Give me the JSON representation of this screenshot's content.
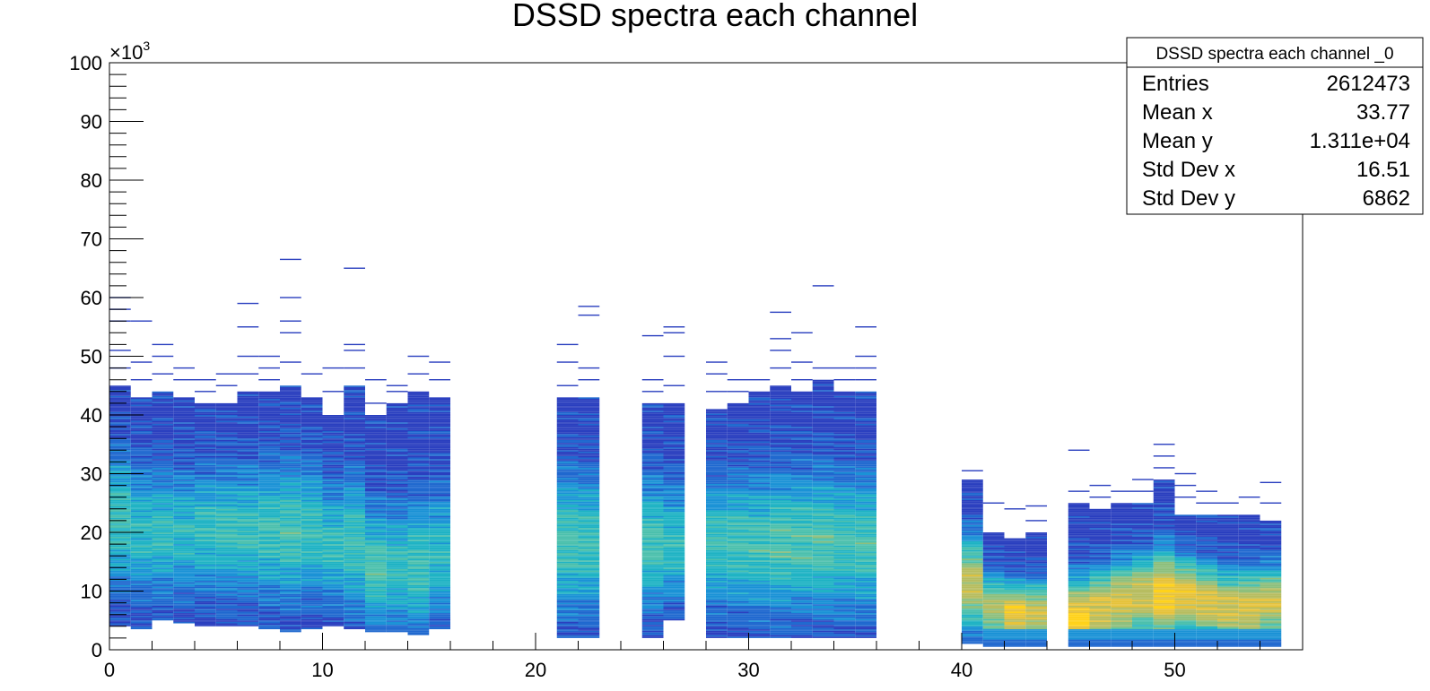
{
  "chart_data": {
    "type": "heatmap",
    "title": "DSSD spectra each channel",
    "xlabel": "",
    "ylabel": "",
    "xlim": [
      0,
      56
    ],
    "ylim": [
      0,
      100
    ],
    "y_multiplier_label": "×10",
    "y_multiplier_exponent": "3",
    "x_ticks": [
      {
        "value": 0,
        "label": "0"
      },
      {
        "value": 10,
        "label": "10"
      },
      {
        "value": 20,
        "label": "20"
      },
      {
        "value": 30,
        "label": "30"
      },
      {
        "value": 40,
        "label": "40"
      },
      {
        "value": 50,
        "label": "50"
      }
    ],
    "y_ticks": [
      {
        "value": 0,
        "label": "0"
      },
      {
        "value": 10,
        "label": "10"
      },
      {
        "value": 20,
        "label": "20"
      },
      {
        "value": 30,
        "label": "30"
      },
      {
        "value": 40,
        "label": "40"
      },
      {
        "value": 50,
        "label": "50"
      },
      {
        "value": 60,
        "label": "60"
      },
      {
        "value": 70,
        "label": "70"
      },
      {
        "value": 80,
        "label": "80"
      },
      {
        "value": 90,
        "label": "90"
      },
      {
        "value": 100,
        "label": "100"
      }
    ],
    "palette": [
      "#2a3fbf",
      "#1f68cf",
      "#1a92d6",
      "#1fb3c4",
      "#4cc0ad",
      "#8dbf7d",
      "#b7bd60",
      "#e6c23a",
      "#ffd21a"
    ],
    "channels": [
      {
        "x": 0,
        "lo": 4,
        "hi": 45,
        "peak": 22,
        "intensity": 0.45,
        "outliers": [
          48,
          51,
          56,
          58,
          60
        ]
      },
      {
        "x": 1,
        "lo": 3.5,
        "hi": 43,
        "peak": 20,
        "intensity": 0.4,
        "outliers": [
          46,
          49,
          56
        ]
      },
      {
        "x": 2,
        "lo": 5,
        "hi": 44,
        "peak": 20,
        "intensity": 0.42,
        "outliers": [
          47,
          50,
          52
        ]
      },
      {
        "x": 3,
        "lo": 4.5,
        "hi": 43,
        "peak": 20,
        "intensity": 0.4,
        "outliers": [
          46,
          48
        ]
      },
      {
        "x": 4,
        "lo": 4,
        "hi": 42,
        "peak": 20,
        "intensity": 0.42,
        "outliers": [
          44,
          46
        ]
      },
      {
        "x": 5,
        "lo": 4,
        "hi": 42,
        "peak": 20,
        "intensity": 0.45,
        "outliers": [
          45,
          47
        ]
      },
      {
        "x": 6,
        "lo": 4,
        "hi": 44,
        "peak": 20,
        "intensity": 0.45,
        "outliers": [
          47,
          50,
          55,
          59
        ]
      },
      {
        "x": 7,
        "lo": 3.5,
        "hi": 44,
        "peak": 20,
        "intensity": 0.47,
        "outliers": [
          46,
          48,
          50
        ]
      },
      {
        "x": 8,
        "lo": 3,
        "hi": 45,
        "peak": 20,
        "intensity": 0.48,
        "outliers": [
          49,
          54,
          56,
          60,
          66.5
        ]
      },
      {
        "x": 9,
        "lo": 3.5,
        "hi": 43,
        "peak": 20,
        "intensity": 0.44,
        "outliers": [
          47
        ]
      },
      {
        "x": 10,
        "lo": 4,
        "hi": 40,
        "peak": 18,
        "intensity": 0.42,
        "outliers": [
          44,
          48
        ]
      },
      {
        "x": 11,
        "lo": 3.5,
        "hi": 45,
        "peak": 18,
        "intensity": 0.45,
        "outliers": [
          48,
          51,
          52,
          65
        ]
      },
      {
        "x": 12,
        "lo": 3,
        "hi": 40,
        "peak": 14,
        "intensity": 0.5,
        "outliers": [
          42,
          46
        ]
      },
      {
        "x": 13,
        "lo": 3,
        "hi": 42,
        "peak": 14,
        "intensity": 0.42,
        "outliers": [
          44,
          45
        ]
      },
      {
        "x": 14,
        "lo": 2.5,
        "hi": 44,
        "peak": 14,
        "intensity": 0.46,
        "outliers": [
          47,
          50
        ]
      },
      {
        "x": 15,
        "lo": 3.5,
        "hi": 43,
        "peak": 16,
        "intensity": 0.4,
        "outliers": [
          46,
          49
        ]
      },
      {
        "x": 21,
        "lo": 2,
        "hi": 43,
        "peak": 18,
        "intensity": 0.48,
        "outliers": [
          45,
          49,
          52
        ]
      },
      {
        "x": 22,
        "lo": 2,
        "hi": 43,
        "peak": 18,
        "intensity": 0.46,
        "outliers": [
          46,
          48,
          57,
          58.5
        ]
      },
      {
        "x": 25,
        "lo": 2,
        "hi": 42,
        "peak": 18,
        "intensity": 0.48,
        "outliers": [
          44,
          46,
          53.5
        ]
      },
      {
        "x": 26,
        "lo": 5,
        "hi": 42,
        "peak": 18,
        "intensity": 0.42,
        "outliers": [
          45,
          50,
          54,
          55
        ]
      },
      {
        "x": 28,
        "lo": 2,
        "hi": 41,
        "peak": 18,
        "intensity": 0.44,
        "outliers": [
          44,
          47,
          49
        ]
      },
      {
        "x": 29,
        "lo": 2,
        "hi": 42,
        "peak": 18,
        "intensity": 0.46,
        "outliers": [
          44,
          46
        ]
      },
      {
        "x": 30,
        "lo": 2,
        "hi": 44,
        "peak": 18,
        "intensity": 0.47,
        "outliers": [
          46
        ]
      },
      {
        "x": 31,
        "lo": 2,
        "hi": 45,
        "peak": 18,
        "intensity": 0.5,
        "outliers": [
          48,
          51,
          53,
          57.5
        ]
      },
      {
        "x": 32,
        "lo": 2,
        "hi": 44,
        "peak": 18,
        "intensity": 0.5,
        "outliers": [
          46,
          49,
          54
        ]
      },
      {
        "x": 33,
        "lo": 2,
        "hi": 46,
        "peak": 18,
        "intensity": 0.5,
        "outliers": [
          48,
          62
        ]
      },
      {
        "x": 34,
        "lo": 2,
        "hi": 44,
        "peak": 18,
        "intensity": 0.47,
        "outliers": [
          46,
          48
        ]
      },
      {
        "x": 35,
        "lo": 2,
        "hi": 44,
        "peak": 18,
        "intensity": 0.48,
        "outliers": [
          46,
          48,
          50,
          55
        ]
      },
      {
        "x": 40,
        "lo": 1,
        "hi": 29,
        "peak": 11,
        "intensity": 0.78,
        "outliers": [
          30.5
        ]
      },
      {
        "x": 41,
        "lo": 0.5,
        "hi": 20,
        "peak": 7,
        "intensity": 0.72,
        "outliers": [
          25
        ]
      },
      {
        "x": 42,
        "lo": 0.5,
        "hi": 19,
        "peak": 6,
        "intensity": 0.92,
        "outliers": [
          24
        ]
      },
      {
        "x": 43,
        "lo": 0.5,
        "hi": 20,
        "peak": 6,
        "intensity": 0.8,
        "outliers": [
          22,
          24.5
        ]
      },
      {
        "x": 45,
        "lo": 0.5,
        "hi": 25,
        "peak": 5,
        "intensity": 1.0,
        "outliers": [
          27,
          34
        ]
      },
      {
        "x": 46,
        "lo": 0.5,
        "hi": 24,
        "peak": 7,
        "intensity": 0.85,
        "outliers": [
          26,
          28
        ]
      },
      {
        "x": 47,
        "lo": 0.5,
        "hi": 25,
        "peak": 8,
        "intensity": 0.85,
        "outliers": [
          27
        ]
      },
      {
        "x": 48,
        "lo": 0.5,
        "hi": 25,
        "peak": 9,
        "intensity": 0.8,
        "outliers": [
          27,
          29
        ]
      },
      {
        "x": 49,
        "lo": 0.5,
        "hi": 29,
        "peak": 9,
        "intensity": 0.95,
        "outliers": [
          31,
          33,
          35
        ]
      },
      {
        "x": 50,
        "lo": 0.5,
        "hi": 23,
        "peak": 9,
        "intensity": 0.9,
        "outliers": [
          26,
          28,
          30
        ]
      },
      {
        "x": 51,
        "lo": 0.5,
        "hi": 23,
        "peak": 8,
        "intensity": 0.85,
        "outliers": [
          25,
          27
        ]
      },
      {
        "x": 52,
        "lo": 0.5,
        "hi": 23,
        "peak": 7,
        "intensity": 0.82,
        "outliers": [
          25
        ]
      },
      {
        "x": 53,
        "lo": 0.5,
        "hi": 23,
        "peak": 7,
        "intensity": 0.85,
        "outliers": [
          26
        ]
      },
      {
        "x": 54,
        "lo": 0.5,
        "hi": 22,
        "peak": 8,
        "intensity": 0.82,
        "outliers": [
          25,
          28.5
        ]
      }
    ],
    "stats_box": {
      "title": "DSSD spectra each channel _0",
      "rows": [
        {
          "label": "Entries",
          "value": "2612473"
        },
        {
          "label": "Mean x",
          "value": "33.77"
        },
        {
          "label": "Mean y",
          "value": "1.311e+04"
        },
        {
          "label": "Std Dev x",
          "value": "16.51"
        },
        {
          "label": "Std Dev y",
          "value": "6862"
        }
      ]
    }
  }
}
